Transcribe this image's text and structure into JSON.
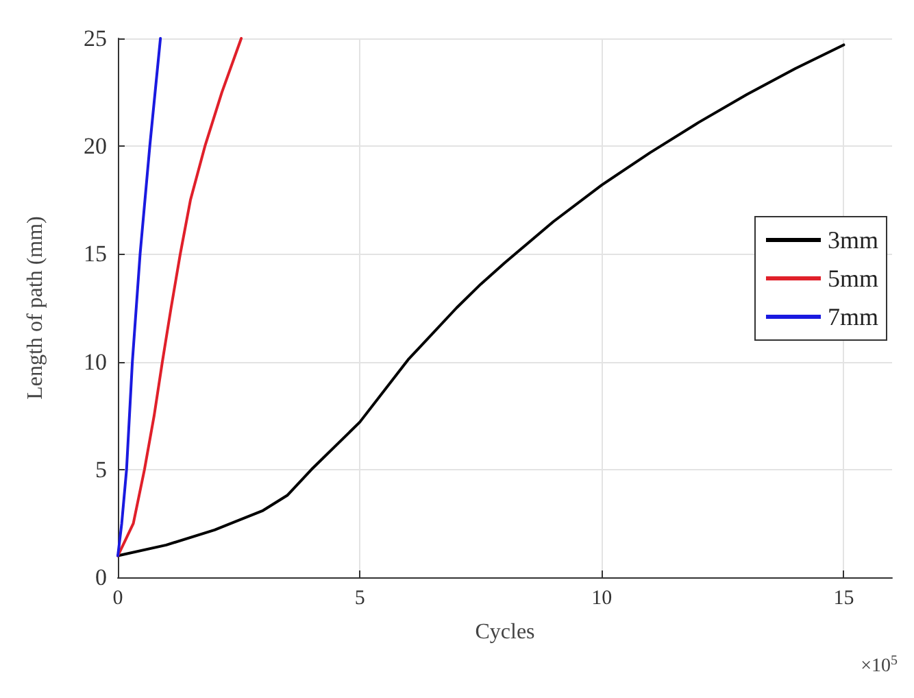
{
  "chart_data": {
    "type": "line",
    "xlabel": "Cycles",
    "ylabel": "Length of path (mm)",
    "annotations": [
      "×10$^{5}$"
    ],
    "xlim": [
      0,
      16
    ],
    "xticks": [
      0,
      5,
      10,
      15
    ],
    "ylim": [
      0,
      25
    ],
    "yticks": [
      0,
      5,
      10,
      15,
      20,
      25
    ],
    "grid": true,
    "legend": "right",
    "marker": "none",
    "line_style": "solid",
    "series": [
      {
        "name": "3mm",
        "color": "#000000",
        "x": [
          0,
          1,
          2,
          3,
          3.5,
          4,
          5,
          6,
          7,
          7.5,
          8,
          9,
          10,
          11,
          12,
          13,
          14,
          15
        ],
        "values": [
          1,
          1.5,
          2.2,
          3.1,
          3.8,
          5,
          7.2,
          10.1,
          12.5,
          13.6,
          14.6,
          16.5,
          18.2,
          19.7,
          21.1,
          22.4,
          23.6,
          24.7
        ]
      },
      {
        "name": "5mm",
        "color": "#e0202a",
        "x": [
          0,
          0.15,
          0.32,
          0.55,
          0.75,
          0.92,
          1.1,
          1.29,
          1.5,
          1.8,
          2.15,
          2.55
        ],
        "values": [
          1,
          1.7,
          2.5,
          5,
          7.5,
          10,
          12.5,
          15,
          17.5,
          20,
          22.5,
          25
        ]
      },
      {
        "name": "7mm",
        "color": "#1a1ae0",
        "x": [
          0,
          0.08,
          0.18,
          0.3,
          0.46,
          0.66,
          0.88
        ],
        "values": [
          1,
          2.5,
          5,
          10,
          15,
          20,
          25
        ]
      }
    ]
  }
}
